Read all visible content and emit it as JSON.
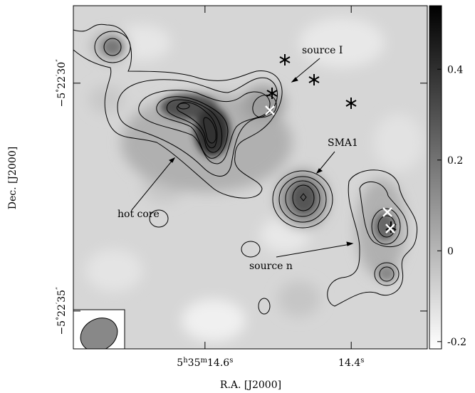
{
  "chart_data": {
    "type": "image",
    "xlabel": "R.A. [J2000]",
    "ylabel": "Dec. [J2000]",
    "xlim": [
      14.78,
      14.296
    ],
    "xticks": [
      {
        "value": 14.6,
        "label": "5h35m14.6s"
      },
      {
        "value": 14.4,
        "label": "14.4s"
      }
    ],
    "ylim": [
      35.83,
      28.3
    ],
    "yticks": [
      {
        "value": 30,
        "label": "−5°22′30″"
      },
      {
        "value": 35,
        "label": "−5°22′35″"
      }
    ],
    "colorbar": {
      "lim": [
        -0.216,
        0.54
      ],
      "ticks": [
        -0.2,
        0,
        0.2,
        0.4
      ]
    },
    "annotations": [
      "source I",
      "SMA1",
      "hot core",
      "source n"
    ]
  }
}
